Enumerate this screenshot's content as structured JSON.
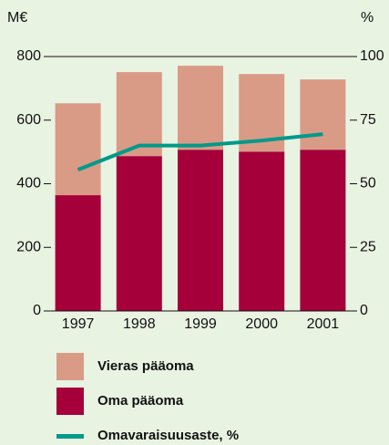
{
  "chart_data": {
    "type": "bar",
    "y_unit": "M€",
    "y2_unit": "%",
    "categories": [
      "1997",
      "1998",
      "1999",
      "2000",
      "2001"
    ],
    "stacked": true,
    "series": [
      {
        "name": "Vieras pääoma",
        "color": "#d99b86",
        "values": [
          289,
          264,
          264,
          244,
          221
        ]
      },
      {
        "name": "Oma pääoma",
        "color": "#a5003a",
        "values": [
          364,
          487,
          507,
          501,
          507
        ]
      },
      {
        "name": "Omavaraisuusaste, %",
        "color": "#00998a",
        "type": "line",
        "axis": "y2",
        "values": [
          55.5,
          65,
          65,
          67,
          69.5
        ]
      }
    ],
    "ylim": [
      0,
      800
    ],
    "yticks": [
      0,
      200,
      400,
      600,
      800
    ],
    "y2lim": [
      0,
      100
    ],
    "y2ticks": [
      0,
      25,
      50,
      75,
      100
    ]
  }
}
